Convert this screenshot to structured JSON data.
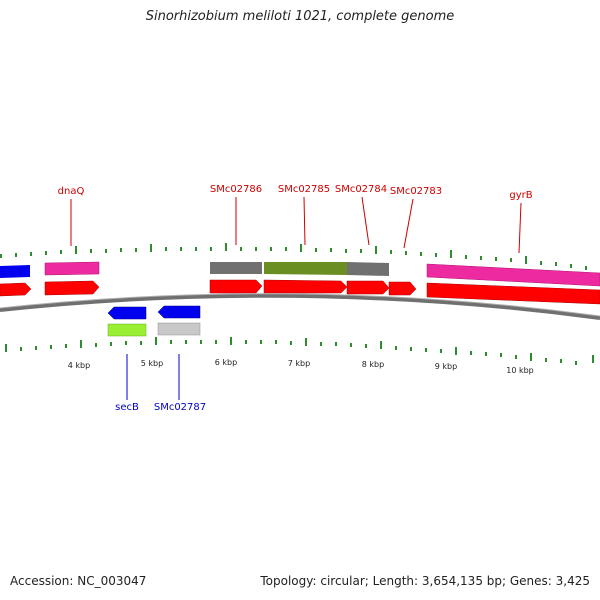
{
  "title": "Sinorhizobium meliloti 1021, complete genome",
  "accession": "Accession: NC_003047",
  "summary": "Topology: circular; Length: 3,654,135 bp; Genes: 3,425",
  "colors": {
    "backbone": "#808080",
    "tick": "#2e8b2e",
    "label_top": "#cc0000",
    "label_bottom": "#0000cc",
    "cds_forward": "#ff0000",
    "cds_reverse": "#0000ee",
    "gene_magenta": "#ee2aa0",
    "gene_grey": "#707070",
    "gene_olive": "#6b8e23",
    "gene_lime": "#9aee33",
    "gene_lightgrey": "#c8c8c8"
  },
  "scale_labels": [
    "4 kbp",
    "5 kbp",
    "6 kbp",
    "7 kbp",
    "8 kbp",
    "9 kbp",
    "10 kbp"
  ],
  "top_labels": [
    "dnaQ",
    "SMc02786",
    "SMc02785",
    "SMc02784",
    "SMc02783",
    "gyrB"
  ],
  "bottom_labels": [
    "secB",
    "SMc02787"
  ]
}
